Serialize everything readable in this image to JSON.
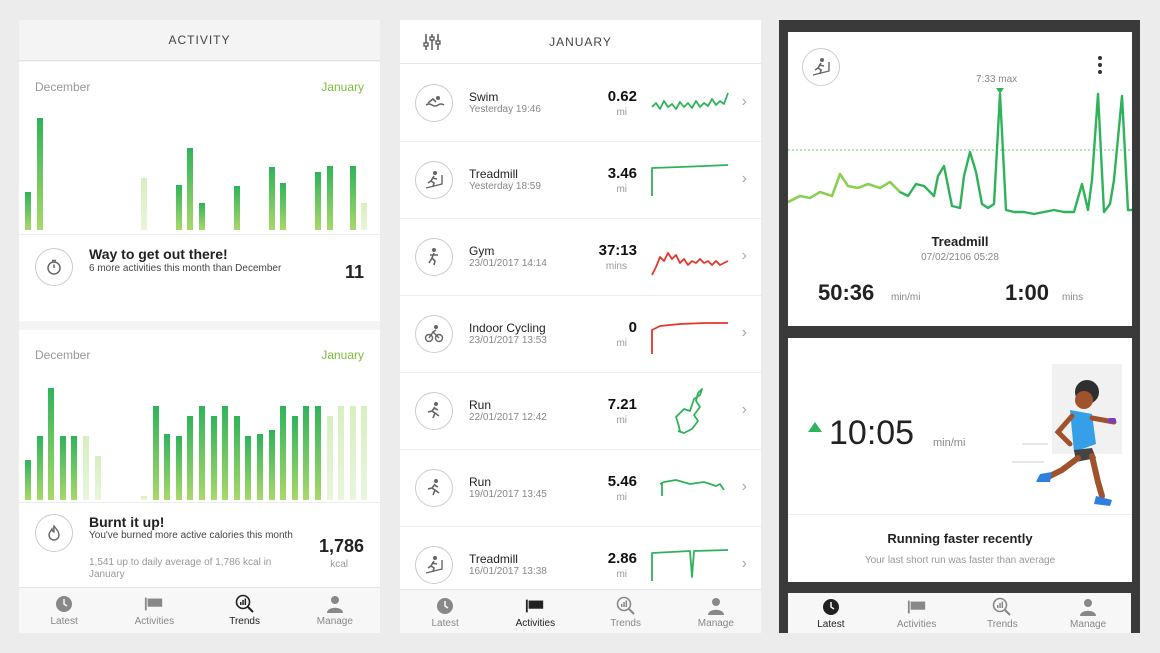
{
  "activity": {
    "title": "ACTIVITY",
    "card1": {
      "prev_month": "December",
      "cur_month": "January",
      "heading": "Way to get out there!",
      "sub": "6 more activities this month than December",
      "count": "11"
    },
    "card2": {
      "prev_month": "December",
      "cur_month": "January",
      "heading": "Burnt it up!",
      "sub": "You've burned more active calories this month",
      "sub2": "1,541 up to daily average of 1,786 kcal in January",
      "value": "1,786",
      "unit": "kcal"
    },
    "chart1_values": [
      38,
      112,
      0,
      0,
      0,
      0,
      0,
      0,
      0,
      0,
      52,
      0,
      0,
      45,
      82,
      27,
      0,
      0,
      44,
      0,
      0,
      63,
      47,
      0,
      0,
      58,
      64,
      0,
      64,
      27
    ],
    "chart2_values": [
      40,
      64,
      112,
      64,
      64,
      64,
      44,
      0,
      0,
      0,
      4,
      94,
      66,
      64,
      84,
      94,
      84,
      94,
      84,
      64,
      66,
      70,
      94,
      84,
      94,
      94,
      84,
      94,
      94,
      94
    ]
  },
  "activities": {
    "title": "JANUARY",
    "items": [
      {
        "name": "Swim",
        "date": "Yesterday 19:46",
        "value": "0.62",
        "unit": "mi",
        "icon": "swim-icon",
        "color": "#2fb35a"
      },
      {
        "name": "Treadmill",
        "date": "Yesterday 18:59",
        "value": "3.46",
        "unit": "mi",
        "icon": "treadmill-icon",
        "color": "#2fb35a"
      },
      {
        "name": "Gym",
        "date": "23/01/2017 14:14",
        "value": "37:13",
        "unit": "mins",
        "icon": "gym-icon",
        "color": "#e8342a"
      },
      {
        "name": "Indoor Cycling",
        "date": "23/01/2017 13:53",
        "value": "0",
        "unit": "mi",
        "icon": "cycling-icon",
        "color": "#e8342a"
      },
      {
        "name": "Run",
        "date": "22/01/2017 12:42",
        "value": "7.21",
        "unit": "mi",
        "icon": "run-icon",
        "color": "#2fb35a"
      },
      {
        "name": "Run",
        "date": "19/01/2017 13:45",
        "value": "5.46",
        "unit": "mi",
        "icon": "run-icon",
        "color": "#2fb35a"
      },
      {
        "name": "Treadmill",
        "date": "16/01/2017 13:38",
        "value": "2.86",
        "unit": "mi",
        "icon": "treadmill-icon",
        "color": "#2fb35a"
      }
    ]
  },
  "detail": {
    "max_label": "7:33 max",
    "title": "Treadmill",
    "date": "07/02/2106 05:28",
    "pace": "50:36",
    "pace_unit": "min/mi",
    "time": "1:00",
    "time_unit": "mins",
    "big_pace": "10:05",
    "big_unit": "min/mi",
    "headline": "Running faster recently",
    "sub": "Your last short run was faster than average"
  },
  "tabs": [
    {
      "label": "Latest",
      "icon": "clock-icon"
    },
    {
      "label": "Activities",
      "icon": "flag-icon"
    },
    {
      "label": "Trends",
      "icon": "trends-icon"
    },
    {
      "label": "Manage",
      "icon": "person-icon"
    }
  ],
  "colors": {
    "green": "#2fb35a",
    "light_green": "#a9d86a",
    "red": "#e8342a"
  }
}
